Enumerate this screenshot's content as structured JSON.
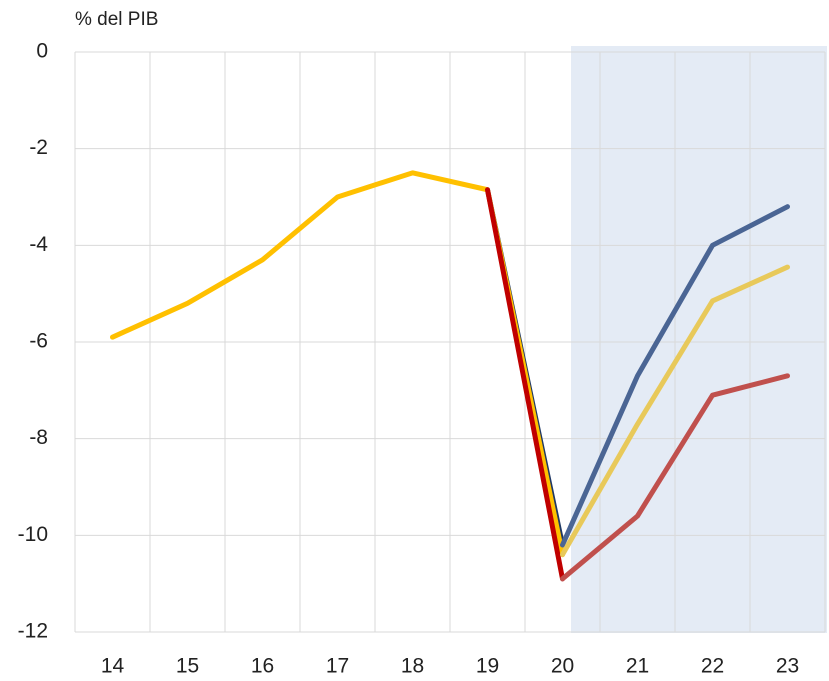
{
  "chart_data": {
    "type": "line",
    "y_label": "% del PIB",
    "categories": [
      "14",
      "15",
      "16",
      "17",
      "18",
      "19",
      "20",
      "21",
      "22",
      "23"
    ],
    "series": [
      {
        "color": "#1f3864",
        "values": [
          null,
          null,
          null,
          null,
          null,
          -2.85,
          -10.2,
          null,
          null,
          null
        ]
      },
      {
        "color": "#ffc000",
        "values": [
          -5.9,
          -5.2,
          -4.3,
          -3.0,
          -2.5,
          -2.85,
          -10.4,
          null,
          null,
          null
        ]
      },
      {
        "color": "#c00000",
        "values": [
          null,
          null,
          null,
          null,
          null,
          -2.85,
          -10.9,
          null,
          null,
          null
        ]
      },
      {
        "color": "#4a6594",
        "values": [
          null,
          null,
          null,
          null,
          null,
          null,
          -10.2,
          -6.7,
          -4.0,
          -3.2
        ]
      },
      {
        "color": "#e8c95a",
        "values": [
          null,
          null,
          null,
          null,
          null,
          null,
          -10.4,
          -7.7,
          -5.15,
          -4.45
        ]
      },
      {
        "color": "#c0504d",
        "values": [
          null,
          null,
          null,
          null,
          null,
          null,
          -10.9,
          -9.6,
          -7.1,
          -6.7
        ]
      }
    ],
    "ylim": [
      -12,
      0
    ],
    "yticks": [
      0,
      -2,
      -4,
      -6,
      -8,
      -10,
      -12
    ],
    "grid": true
  }
}
